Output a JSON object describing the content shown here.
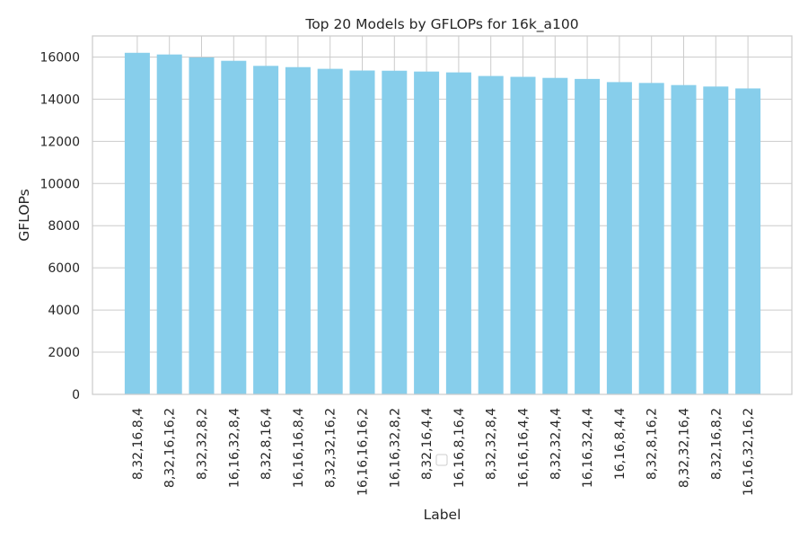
{
  "chart_data": {
    "type": "bar",
    "title": "Top 20 Models by GFLOPs for 16k_a100",
    "xlabel": "Label",
    "ylabel": "GFLOPs",
    "ylim": [
      0,
      17000
    ],
    "yticks": [
      0,
      2000,
      4000,
      6000,
      8000,
      10000,
      12000,
      14000,
      16000
    ],
    "grid": true,
    "legend": "empty box at bottom-center",
    "bar_color": "#87CEEB",
    "categories": [
      "8,32,16,8,4",
      "8,32,16,16,2",
      "8,32,32,8,2",
      "16,16,32,8,4",
      "8,32,8,16,4",
      "16,16,16,8,4",
      "8,32,32,16,2",
      "16,16,16,16,2",
      "16,16,32,8,2",
      "8,32,16,4,4",
      "16,16,8,16,4",
      "8,32,32,8,4",
      "16,16,16,4,4",
      "8,32,32,4,4",
      "16,16,32,4,4",
      "16,16,8,4,4",
      "8,32,8,16,2",
      "8,32,32,16,4",
      "8,32,16,8,2",
      "16,16,32,16,2"
    ],
    "values": [
      16200,
      16120,
      15980,
      15820,
      15580,
      15520,
      15440,
      15360,
      15350,
      15310,
      15270,
      15100,
      15060,
      15010,
      14960,
      14810,
      14770,
      14670,
      14600,
      14510
    ]
  }
}
